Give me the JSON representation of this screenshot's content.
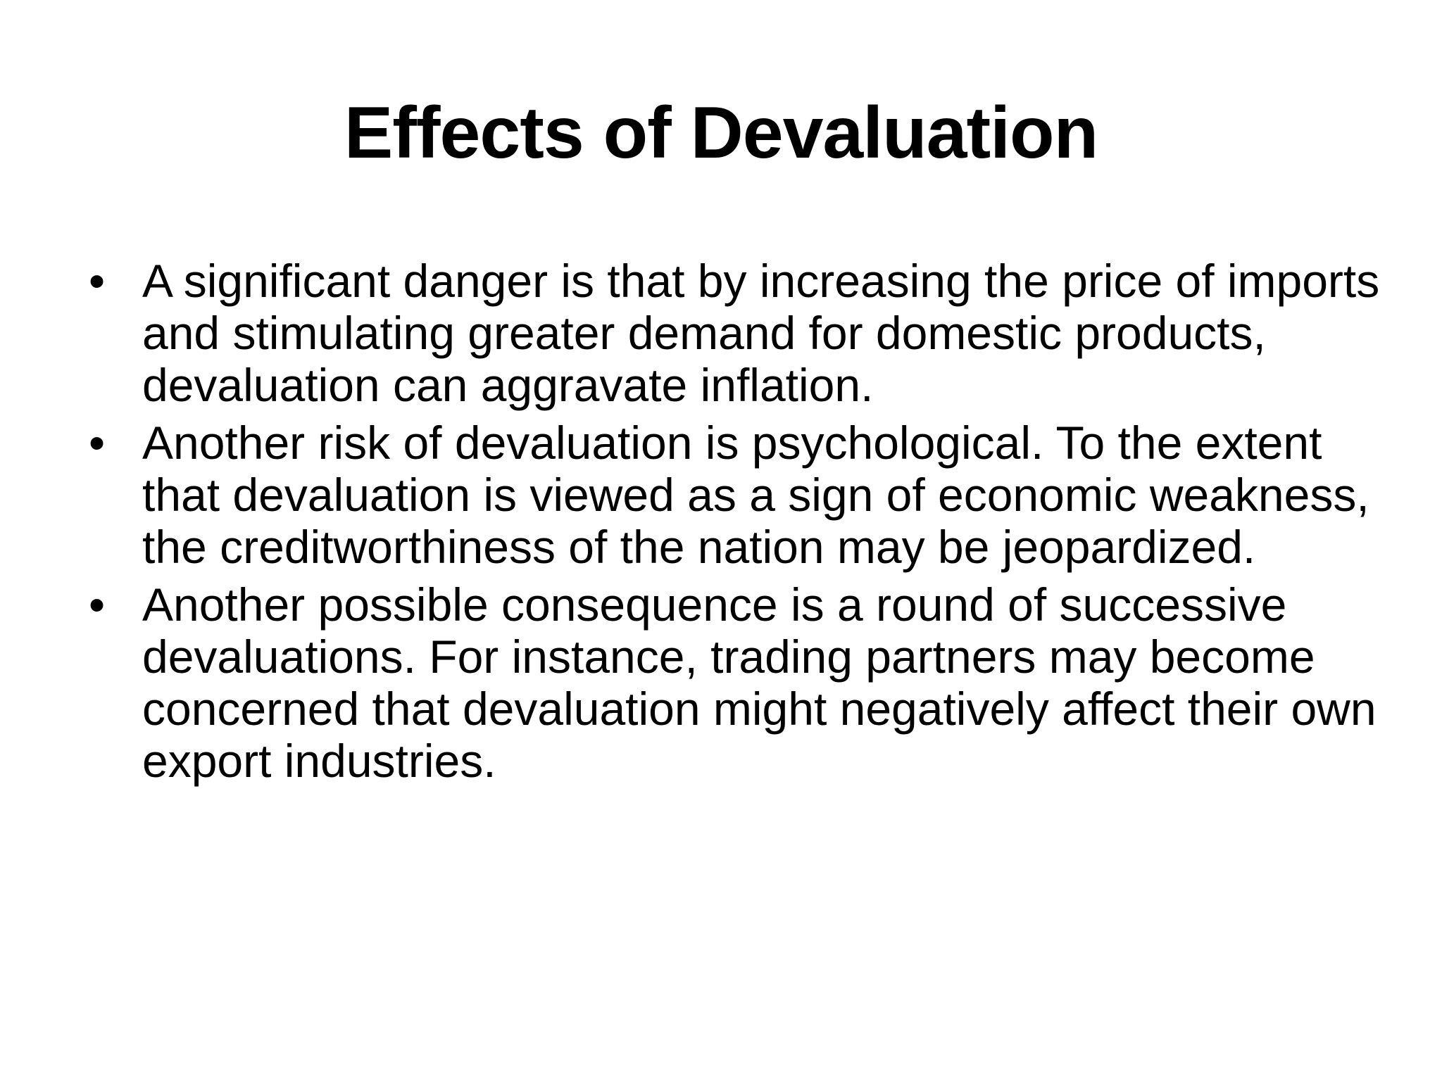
{
  "slide": {
    "title": "Effects of Devaluation",
    "bullets": [
      {
        "text": "A significant danger is that by increasing the price of imports and stimulating greater demand for domestic products, devaluation can aggravate inflation."
      },
      {
        "text": "Another risk of devaluation is psychological. To the extent that devaluation is viewed as a sign of economic weakness, the creditworthiness of the nation may be jeopardized."
      },
      {
        "text": "Another possible consequence is a round of successive devaluations. For instance, trading partners may become concerned that devaluation might negatively affect their own export industries."
      }
    ]
  }
}
